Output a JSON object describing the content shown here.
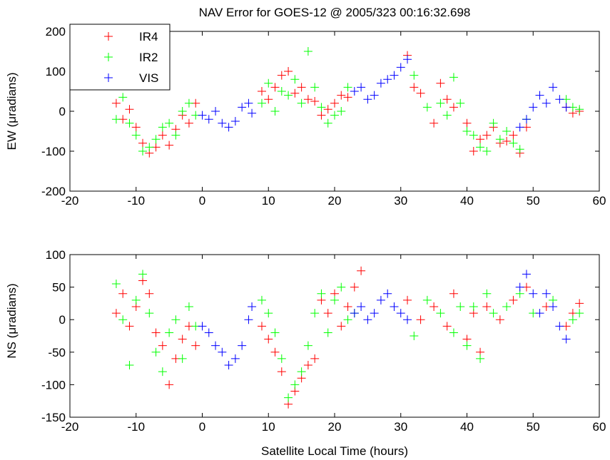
{
  "chart_data": [
    {
      "type": "scatter",
      "title": "NAV Error for GOES-12 @ 2005/323 00:16:32.698",
      "xlabel": "",
      "ylabel": "EW (μradians)",
      "xlim": [
        -20,
        60
      ],
      "ylim": [
        -200,
        200
      ],
      "xticks": [
        -20,
        -10,
        0,
        10,
        20,
        30,
        40,
        50,
        60
      ],
      "yticks": [
        -200,
        -100,
        0,
        100,
        200
      ],
      "marker": "+",
      "legend": {
        "position": "top-left",
        "entries": [
          "IR4",
          "IR2",
          "VIS"
        ]
      },
      "series": [
        {
          "name": "IR4",
          "color": "#ff0000",
          "points": [
            [
              -13,
              20
            ],
            [
              -12,
              -20
            ],
            [
              -11,
              5
            ],
            [
              -10,
              -40
            ],
            [
              -9,
              -80
            ],
            [
              -8,
              -105
            ],
            [
              -7,
              -90
            ],
            [
              -6,
              -60
            ],
            [
              -5,
              -85
            ],
            [
              -4,
              -45
            ],
            [
              -3,
              -10
            ],
            [
              -2,
              -30
            ],
            [
              -1,
              20
            ],
            [
              9,
              50
            ],
            [
              10,
              30
            ],
            [
              11,
              60
            ],
            [
              12,
              90
            ],
            [
              13,
              100
            ],
            [
              14,
              45
            ],
            [
              15,
              60
            ],
            [
              16,
              30
            ],
            [
              17,
              25
            ],
            [
              18,
              -10
            ],
            [
              19,
              5
            ],
            [
              20,
              20
            ],
            [
              21,
              40
            ],
            [
              22,
              35
            ],
            [
              31,
              140
            ],
            [
              32,
              60
            ],
            [
              33,
              45
            ],
            [
              35,
              -30
            ],
            [
              36,
              70
            ],
            [
              37,
              30
            ],
            [
              38,
              10
            ],
            [
              40,
              -30
            ],
            [
              41,
              -100
            ],
            [
              42,
              -70
            ],
            [
              43,
              -60
            ],
            [
              44,
              -40
            ],
            [
              45,
              -80
            ],
            [
              46,
              -75
            ],
            [
              47,
              -60
            ],
            [
              48,
              -105
            ],
            [
              49,
              -40
            ],
            [
              55,
              10
            ],
            [
              56,
              -5
            ],
            [
              57,
              0
            ]
          ]
        },
        {
          "name": "IR2",
          "color": "#00ff00",
          "points": [
            [
              -13,
              -20
            ],
            [
              -12,
              35
            ],
            [
              -11,
              -30
            ],
            [
              -10,
              -60
            ],
            [
              -9,
              -100
            ],
            [
              -8,
              -90
            ],
            [
              -7,
              -70
            ],
            [
              -6,
              -40
            ],
            [
              -5,
              -30
            ],
            [
              -4,
              -60
            ],
            [
              -3,
              0
            ],
            [
              -2,
              20
            ],
            [
              -1,
              -10
            ],
            [
              9,
              20
            ],
            [
              10,
              70
            ],
            [
              11,
              0
            ],
            [
              12,
              50
            ],
            [
              13,
              40
            ],
            [
              14,
              80
            ],
            [
              15,
              20
            ],
            [
              16,
              150
            ],
            [
              17,
              60
            ],
            [
              18,
              10
            ],
            [
              19,
              -30
            ],
            [
              20,
              -10
            ],
            [
              21,
              0
            ],
            [
              22,
              60
            ],
            [
              32,
              90
            ],
            [
              34,
              10
            ],
            [
              36,
              20
            ],
            [
              37,
              -10
            ],
            [
              38,
              85
            ],
            [
              39,
              20
            ],
            [
              40,
              -50
            ],
            [
              41,
              -60
            ],
            [
              42,
              -90
            ],
            [
              43,
              -100
            ],
            [
              44,
              -30
            ],
            [
              45,
              -70
            ],
            [
              46,
              -50
            ],
            [
              47,
              -80
            ],
            [
              48,
              -95
            ],
            [
              49,
              -20
            ],
            [
              55,
              30
            ],
            [
              56,
              10
            ],
            [
              57,
              5
            ]
          ]
        },
        {
          "name": "VIS",
          "color": "#0000ff",
          "points": [
            [
              0,
              -10
            ],
            [
              1,
              -20
            ],
            [
              2,
              0
            ],
            [
              3,
              -30
            ],
            [
              4,
              -40
            ],
            [
              5,
              -25
            ],
            [
              6,
              10
            ],
            [
              7,
              20
            ],
            [
              7.5,
              -5
            ],
            [
              23,
              50
            ],
            [
              24,
              60
            ],
            [
              25,
              30
            ],
            [
              26,
              40
            ],
            [
              27,
              70
            ],
            [
              28,
              80
            ],
            [
              29,
              90
            ],
            [
              30,
              110
            ],
            [
              31,
              130
            ],
            [
              48,
              -40
            ],
            [
              49,
              -20
            ],
            [
              50,
              10
            ],
            [
              51,
              40
            ],
            [
              52,
              20
            ],
            [
              53,
              60
            ],
            [
              54,
              30
            ],
            [
              55,
              10
            ]
          ]
        }
      ]
    },
    {
      "type": "scatter",
      "title": "",
      "xlabel": "Satellite Local Time (hours)",
      "ylabel": "NS (μradians)",
      "xlim": [
        -20,
        60
      ],
      "ylim": [
        -150,
        100
      ],
      "xticks": [
        -20,
        -10,
        0,
        10,
        20,
        30,
        40,
        50,
        60
      ],
      "yticks": [
        -150,
        -100,
        -50,
        0,
        50,
        100
      ],
      "marker": "+",
      "series": [
        {
          "name": "IR4",
          "color": "#ff0000",
          "points": [
            [
              -13,
              10
            ],
            [
              -12,
              40
            ],
            [
              -11,
              -10
            ],
            [
              -10,
              20
            ],
            [
              -9,
              60
            ],
            [
              -8,
              40
            ],
            [
              -7,
              -20
            ],
            [
              -6,
              -40
            ],
            [
              -5,
              -100
            ],
            [
              -4,
              -60
            ],
            [
              -3,
              -30
            ],
            [
              -2,
              -10
            ],
            [
              -1,
              -40
            ],
            [
              9,
              -10
            ],
            [
              10,
              -30
            ],
            [
              11,
              -50
            ],
            [
              12,
              -80
            ],
            [
              13,
              -130
            ],
            [
              14,
              -110
            ],
            [
              15,
              -90
            ],
            [
              16,
              -70
            ],
            [
              17,
              -60
            ],
            [
              18,
              30
            ],
            [
              19,
              10
            ],
            [
              20,
              40
            ],
            [
              21,
              -10
            ],
            [
              22,
              20
            ],
            [
              23,
              50
            ],
            [
              24,
              75
            ],
            [
              31,
              30
            ],
            [
              33,
              0
            ],
            [
              35,
              20
            ],
            [
              37,
              -10
            ],
            [
              38,
              40
            ],
            [
              40,
              -30
            ],
            [
              41,
              10
            ],
            [
              42,
              -50
            ],
            [
              43,
              20
            ],
            [
              45,
              0
            ],
            [
              47,
              30
            ],
            [
              49,
              50
            ],
            [
              52,
              20
            ],
            [
              55,
              -10
            ],
            [
              56,
              10
            ],
            [
              57,
              25
            ]
          ]
        },
        {
          "name": "IR2",
          "color": "#00ff00",
          "points": [
            [
              -13,
              55
            ],
            [
              -12,
              0
            ],
            [
              -11,
              -70
            ],
            [
              -10,
              30
            ],
            [
              -9,
              70
            ],
            [
              -8,
              10
            ],
            [
              -7,
              -50
            ],
            [
              -6,
              -80
            ],
            [
              -5,
              -20
            ],
            [
              -4,
              0
            ],
            [
              -3,
              -60
            ],
            [
              -2,
              20
            ],
            [
              -1,
              -10
            ],
            [
              9,
              30
            ],
            [
              10,
              10
            ],
            [
              11,
              -20
            ],
            [
              12,
              -60
            ],
            [
              13,
              -120
            ],
            [
              14,
              -100
            ],
            [
              15,
              -80
            ],
            [
              16,
              -40
            ],
            [
              17,
              10
            ],
            [
              18,
              40
            ],
            [
              19,
              -20
            ],
            [
              20,
              30
            ],
            [
              21,
              50
            ],
            [
              22,
              0
            ],
            [
              23,
              10
            ],
            [
              32,
              -25
            ],
            [
              34,
              30
            ],
            [
              36,
              10
            ],
            [
              38,
              -20
            ],
            [
              39,
              20
            ],
            [
              40,
              -40
            ],
            [
              41,
              20
            ],
            [
              42,
              -60
            ],
            [
              43,
              40
            ],
            [
              44,
              10
            ],
            [
              46,
              20
            ],
            [
              48,
              40
            ],
            [
              50,
              10
            ],
            [
              53,
              30
            ],
            [
              56,
              0
            ],
            [
              57,
              10
            ]
          ]
        },
        {
          "name": "VIS",
          "color": "#0000ff",
          "points": [
            [
              0,
              -10
            ],
            [
              1,
              -20
            ],
            [
              2,
              -40
            ],
            [
              3,
              -50
            ],
            [
              4,
              -70
            ],
            [
              5,
              -60
            ],
            [
              6,
              -40
            ],
            [
              7,
              0
            ],
            [
              7.5,
              20
            ],
            [
              23,
              10
            ],
            [
              24,
              20
            ],
            [
              25,
              0
            ],
            [
              26,
              10
            ],
            [
              27,
              30
            ],
            [
              28,
              40
            ],
            [
              29,
              20
            ],
            [
              30,
              10
            ],
            [
              31,
              0
            ],
            [
              48,
              50
            ],
            [
              49,
              70
            ],
            [
              50,
              40
            ],
            [
              51,
              10
            ],
            [
              52,
              40
            ],
            [
              53,
              20
            ],
            [
              54,
              -10
            ],
            [
              55,
              -30
            ]
          ]
        }
      ]
    }
  ]
}
